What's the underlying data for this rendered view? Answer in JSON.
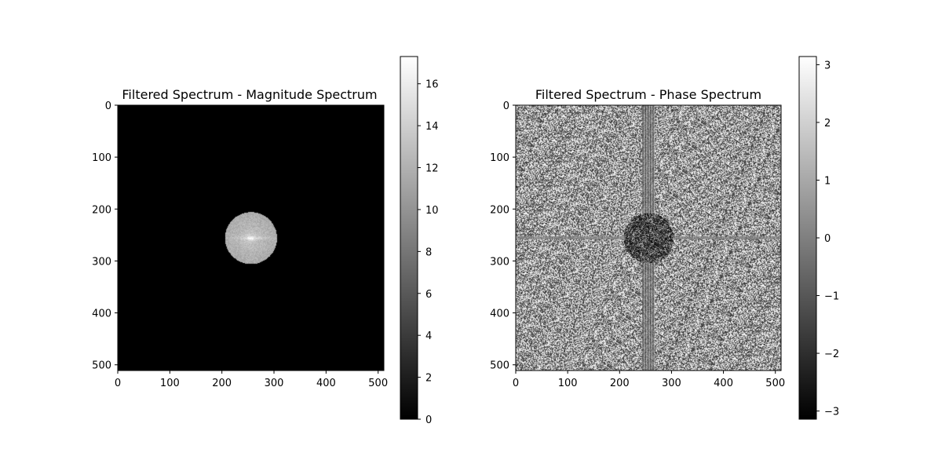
{
  "chart_data": [
    {
      "type": "heatmap",
      "title": "Filtered Spectrum - Magnitude Spectrum",
      "xlim": [
        0,
        511
      ],
      "ylim": [
        511,
        0
      ],
      "x_ticks": [
        "0",
        "100",
        "200",
        "300",
        "400",
        "500"
      ],
      "y_ticks": [
        "0",
        "100",
        "200",
        "300",
        "400",
        "500"
      ],
      "colormap": "gray",
      "colorbar": {
        "min": 0,
        "max": 17.3,
        "ticks": [
          "0",
          "2",
          "4",
          "6",
          "8",
          "10",
          "12",
          "14",
          "16"
        ]
      },
      "content": {
        "background_value": 0,
        "disk_center": [
          256,
          256
        ],
        "disk_radius": 50,
        "disk_value_range": [
          9,
          14
        ],
        "peak_value": 17
      }
    },
    {
      "type": "heatmap",
      "title": "Filtered Spectrum - Phase Spectrum",
      "xlim": [
        0,
        511
      ],
      "ylim": [
        511,
        0
      ],
      "x_ticks": [
        "0",
        "100",
        "200",
        "300",
        "400",
        "500"
      ],
      "y_ticks": [
        "0",
        "100",
        "200",
        "300",
        "400",
        "500"
      ],
      "colormap": "gray",
      "colorbar": {
        "min": -3.14159,
        "max": 3.14159,
        "ticks": [
          "−3",
          "−2",
          "−1",
          "0",
          "1",
          "2",
          "3"
        ]
      },
      "content": {
        "background": "uniform random noise",
        "disk_center": [
          256,
          256
        ],
        "disk_radius": 48,
        "streaks": "vertical and horizontal bands through center"
      }
    }
  ]
}
